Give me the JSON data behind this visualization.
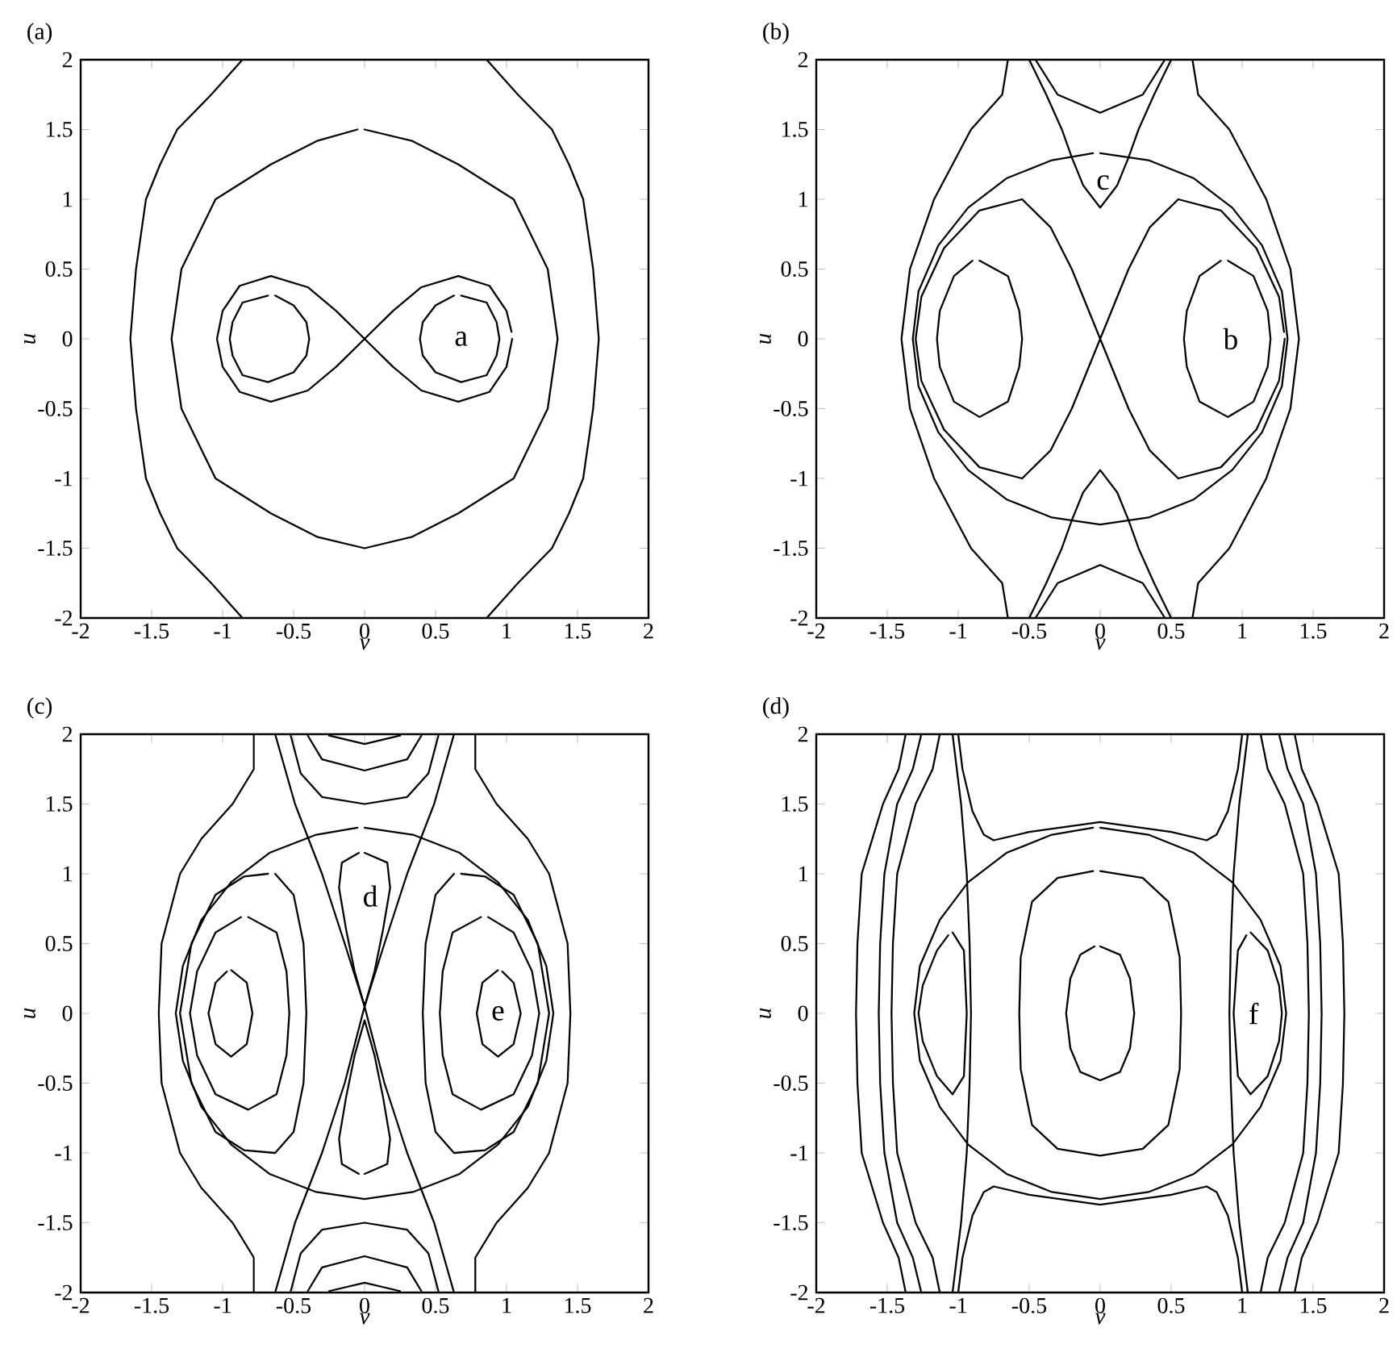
{
  "chart_data": [
    {
      "type": "line",
      "title": "(a)",
      "xlabel": "v",
      "ylabel": "u",
      "xlim": [
        -2,
        2
      ],
      "ylim": [
        -2,
        2
      ],
      "xticks": [
        -2,
        -1.5,
        -1,
        -0.5,
        0,
        0.5,
        1,
        1.5,
        2
      ],
      "yticks": [
        -2,
        -1.5,
        -1,
        -0.5,
        0,
        0.5,
        1,
        1.5,
        2
      ],
      "color": "#000000",
      "annotations": [
        "a"
      ],
      "series": [
        {
          "x": [
            -0.86,
            -1.08,
            -1.32,
            -1.44,
            -1.54,
            -1.61,
            -1.65,
            -1.61,
            -1.54,
            -1.44,
            -1.32,
            -1.08,
            -0.86
          ],
          "values": [
            2,
            1.75,
            1.5,
            1.25,
            1,
            0.5,
            0,
            -0.5,
            -1,
            -1.25,
            -1.5,
            -1.75,
            -2
          ]
        },
        {
          "x": [
            0.86,
            1.08,
            1.32,
            1.44,
            1.54,
            1.61,
            1.65,
            1.61,
            1.54,
            1.44,
            1.32,
            1.08,
            0.86
          ],
          "values": [
            2,
            1.75,
            1.5,
            1.25,
            1,
            0.5,
            0,
            -0.5,
            -1,
            -1.25,
            -1.5,
            -1.75,
            -2
          ]
        },
        {
          "x": [
            0,
            0.33,
            0.66,
            1.05,
            1.29,
            1.36,
            1.29,
            1.05,
            0.66,
            0.33,
            0,
            -0.33,
            -0.66,
            -1.05,
            -1.29,
            -1.36,
            -1.29,
            -1.05,
            -0.66,
            -0.33,
            -0.05
          ],
          "values": [
            1.5,
            1.42,
            1.25,
            1.0,
            0.5,
            0,
            -0.5,
            -1.0,
            -1.25,
            -1.42,
            -1.5,
            -1.42,
            -1.25,
            -1.0,
            -0.5,
            0,
            0.5,
            1.0,
            1.25,
            1.42,
            1.5
          ]
        },
        {
          "x": [
            1.04,
            1.0,
            0.88,
            0.66,
            0.4,
            0.2,
            0,
            -0.2,
            -0.4,
            -0.66,
            -0.88,
            -1.0,
            -1.04,
            -1.0,
            -0.88,
            -0.66,
            -0.4,
            -0.2,
            0,
            0.2,
            0.4,
            0.66,
            0.88,
            1.0,
            1.035
          ],
          "values": [
            0,
            -0.2,
            -0.38,
            -0.45,
            -0.37,
            -0.2,
            0,
            0.2,
            0.37,
            0.45,
            0.38,
            0.2,
            0,
            -0.2,
            -0.38,
            -0.45,
            -0.37,
            -0.2,
            0,
            0.2,
            0.37,
            0.45,
            0.38,
            0.2,
            0.05
          ]
        },
        {
          "x": [
            0.68,
            0.86,
            0.93,
            0.95,
            0.93,
            0.86,
            0.68,
            0.5,
            0.41,
            0.39,
            0.41,
            0.5,
            0.63
          ],
          "values": [
            0.31,
            0.26,
            0.12,
            0,
            -0.12,
            -0.26,
            -0.31,
            -0.24,
            -0.12,
            0,
            0.12,
            0.24,
            0.31
          ]
        },
        {
          "x": [
            -0.68,
            -0.86,
            -0.93,
            -0.95,
            -0.93,
            -0.86,
            -0.68,
            -0.5,
            -0.41,
            -0.39,
            -0.41,
            -0.5,
            -0.63
          ],
          "values": [
            0.31,
            0.26,
            0.12,
            0,
            -0.12,
            -0.26,
            -0.31,
            -0.24,
            -0.12,
            0,
            0.12,
            0.24,
            0.31
          ]
        }
      ]
    },
    {
      "type": "line",
      "title": "(b)",
      "xlabel": "v",
      "ylabel": "u",
      "xlim": [
        -2,
        2
      ],
      "ylim": [
        -2,
        2
      ],
      "xticks": [
        -2,
        -1.5,
        -1,
        -0.5,
        0,
        0.5,
        1,
        1.5,
        2
      ],
      "yticks": [
        -2,
        -1.5,
        -1,
        -0.5,
        0,
        0.5,
        1,
        1.5,
        2
      ],
      "color": "#000000",
      "annotations": [
        "c",
        "b"
      ],
      "series": [
        {
          "x": [
            -0.65,
            -0.69,
            -0.91,
            -1.17,
            -1.34,
            -1.4,
            -1.34,
            -1.17,
            -0.91,
            -0.69,
            -0.65
          ],
          "values": [
            2,
            1.75,
            1.5,
            1,
            0.5,
            0,
            -0.5,
            -1,
            -1.5,
            -1.75,
            -2
          ]
        },
        {
          "x": [
            0.65,
            0.69,
            0.91,
            1.17,
            1.34,
            1.4,
            1.34,
            1.17,
            0.91,
            0.69,
            0.65
          ],
          "values": [
            2,
            1.75,
            1.5,
            1,
            0.5,
            0,
            -0.5,
            -1,
            -1.5,
            -1.75,
            -2
          ]
        },
        {
          "x": [
            0,
            0.34,
            0.66,
            0.93,
            1.14,
            1.28,
            1.32,
            1.28,
            1.14,
            0.93,
            0.66,
            0.34,
            0,
            -0.34,
            -0.66,
            -0.93,
            -1.14,
            -1.28,
            -1.32,
            -1.28,
            -1.14,
            -0.93,
            -0.66,
            -0.34,
            -0.05
          ],
          "values": [
            1.33,
            1.28,
            1.15,
            0.94,
            0.67,
            0.34,
            0,
            -0.34,
            -0.67,
            -0.94,
            -1.15,
            -1.28,
            -1.33,
            -1.28,
            -1.15,
            -0.94,
            -0.67,
            -0.34,
            0,
            0.34,
            0.67,
            0.94,
            1.15,
            1.28,
            1.33
          ]
        },
        {
          "x": [
            1.3,
            1.26,
            1.1,
            0.85,
            0.55,
            0.35,
            0.2,
            0.1,
            0,
            -0.1,
            -0.2,
            -0.35,
            -0.55,
            -0.85,
            -1.1,
            -1.26,
            -1.3,
            -1.26,
            -1.1,
            -0.85,
            -0.55,
            -0.35,
            -0.2,
            -0.1,
            0,
            0.1,
            0.2,
            0.35,
            0.55,
            0.85,
            1.1,
            1.26,
            1.295
          ],
          "values": [
            0,
            -0.3,
            -0.65,
            -0.92,
            -1.0,
            -0.8,
            -0.5,
            -0.25,
            0,
            0.25,
            0.5,
            0.8,
            1.0,
            0.92,
            0.65,
            0.3,
            0,
            -0.3,
            -0.65,
            -0.92,
            -1.0,
            -0.8,
            -0.5,
            -0.25,
            0,
            0.25,
            0.5,
            0.8,
            1.0,
            0.92,
            0.65,
            0.3,
            0.05
          ]
        },
        {
          "x": [
            0.9,
            1.08,
            1.18,
            1.2,
            1.18,
            1.08,
            0.9,
            0.7,
            0.61,
            0.59,
            0.61,
            0.7,
            0.85
          ],
          "values": [
            0.56,
            0.45,
            0.2,
            0,
            -0.2,
            -0.45,
            -0.56,
            -0.45,
            -0.2,
            0,
            0.2,
            0.45,
            0.56
          ]
        },
        {
          "x": [
            -0.85,
            -0.65,
            -0.57,
            -0.55,
            -0.57,
            -0.65,
            -0.85,
            -1.03,
            -1.13,
            -1.15,
            -1.13,
            -1.03,
            -0.9
          ],
          "values": [
            0.56,
            0.45,
            0.2,
            0,
            -0.2,
            -0.45,
            -0.56,
            -0.45,
            -0.2,
            0,
            0.2,
            0.45,
            0.56
          ]
        },
        {
          "x": [
            -0.5,
            -0.38,
            -0.27,
            -0.2,
            -0.12,
            0,
            0.12,
            0.2,
            0.27,
            0.38,
            0.5
          ],
          "values": [
            2,
            1.75,
            1.5,
            1.3,
            1.1,
            0.94,
            1.1,
            1.3,
            1.5,
            1.75,
            2
          ]
        },
        {
          "x": [
            -0.5,
            -0.38,
            -0.27,
            -0.2,
            -0.12,
            0,
            0.12,
            0.2,
            0.27,
            0.38,
            0.5
          ],
          "values": [
            -2,
            -1.75,
            -1.5,
            -1.3,
            -1.1,
            -0.94,
            -1.1,
            -1.3,
            -1.5,
            -1.75,
            -2
          ]
        },
        {
          "x": [
            -0.45,
            -0.3,
            0,
            0.3,
            0.45
          ],
          "values": [
            1.99,
            1.75,
            1.62,
            1.75,
            1.99
          ]
        },
        {
          "x": [
            -0.45,
            -0.3,
            0,
            0.3,
            0.45
          ],
          "values": [
            -1.99,
            -1.75,
            -1.62,
            -1.75,
            -1.99
          ]
        }
      ]
    },
    {
      "type": "line",
      "title": "(c)",
      "xlabel": "v",
      "ylabel": "u",
      "xlim": [
        -2,
        2
      ],
      "ylim": [
        -2,
        2
      ],
      "xticks": [
        -2,
        -1.5,
        -1,
        -0.5,
        0,
        0.5,
        1,
        1.5,
        2
      ],
      "yticks": [
        -2,
        -1.5,
        -1,
        -0.5,
        0,
        0.5,
        1,
        1.5,
        2
      ],
      "color": "#000000",
      "annotations": [
        "d",
        "e"
      ],
      "series": [
        {
          "x": [
            -0.78,
            -0.78,
            -0.93,
            -1.15,
            -1.3,
            -1.43,
            -1.45,
            -1.43,
            -1.3,
            -1.15,
            -0.93,
            -0.78,
            -0.78
          ],
          "values": [
            2,
            1.75,
            1.5,
            1.25,
            1,
            0.5,
            0,
            -0.5,
            -1,
            -1.25,
            -1.5,
            -1.75,
            -2
          ]
        },
        {
          "x": [
            0.78,
            0.78,
            0.93,
            1.15,
            1.3,
            1.43,
            1.45,
            1.43,
            1.3,
            1.15,
            0.93,
            0.78,
            0.78
          ],
          "values": [
            2,
            1.75,
            1.5,
            1.25,
            1,
            0.5,
            0,
            -0.5,
            -1,
            -1.25,
            -1.5,
            -1.75,
            -2
          ]
        },
        {
          "x": [
            0,
            0.34,
            0.67,
            0.94,
            1.15,
            1.28,
            1.33,
            1.28,
            1.15,
            0.94,
            0.67,
            0.34,
            0,
            -0.34,
            -0.67,
            -0.94,
            -1.15,
            -1.28,
            -1.33,
            -1.28,
            -1.15,
            -0.94,
            -0.67,
            -0.34,
            -0.05
          ],
          "values": [
            1.33,
            1.28,
            1.15,
            0.94,
            0.67,
            0.34,
            0,
            -0.34,
            -0.67,
            -0.94,
            -1.15,
            -1.28,
            -1.33,
            -1.28,
            -1.15,
            -0.94,
            -0.67,
            -0.34,
            0,
            0.34,
            0.67,
            0.94,
            1.15,
            1.28,
            1.33
          ]
        },
        {
          "x": [
            -0.63,
            -0.49,
            -0.3,
            -0.14,
            0,
            0.14,
            0.3,
            0.49,
            0.63
          ],
          "values": [
            2,
            1.5,
            1.0,
            0.5,
            0.05,
            -0.5,
            -1.0,
            -1.5,
            -2
          ]
        },
        {
          "x": [
            0.63,
            0.49,
            0.3,
            0.14,
            0,
            -0.14,
            -0.3,
            -0.49,
            -0.63
          ],
          "values": [
            2,
            1.5,
            1.0,
            0.5,
            0.05,
            -0.5,
            -1.0,
            -1.5,
            -2
          ]
        },
        {
          "x": [
            0,
            0.16,
            0.18,
            0.13,
            0.07,
            0,
            -0.07,
            -0.13,
            -0.18,
            -0.16,
            -0.04
          ],
          "values": [
            1.15,
            1.08,
            0.9,
            0.6,
            0.3,
            0.05,
            0.3,
            0.6,
            0.9,
            1.08,
            1.15
          ]
        },
        {
          "x": [
            0,
            0.16,
            0.18,
            0.13,
            0.07,
            0,
            -0.07,
            -0.13,
            -0.18,
            -0.16,
            -0.04
          ],
          "values": [
            -1.15,
            -1.08,
            -0.9,
            -0.6,
            -0.3,
            -0.05,
            -0.3,
            -0.6,
            -0.9,
            -1.08,
            -1.15
          ]
        },
        {
          "x": [
            -0.63,
            -0.5,
            -0.43,
            -0.41,
            -0.43,
            -0.5,
            -0.63,
            -0.85,
            -1.05,
            -1.22,
            -1.3,
            -1.22,
            -1.05,
            -0.85,
            -0.68
          ],
          "values": [
            1.0,
            0.85,
            0.5,
            0,
            -0.5,
            -0.85,
            -1.0,
            -0.98,
            -0.85,
            -0.5,
            0,
            0.5,
            0.85,
            0.98,
            1.0
          ]
        },
        {
          "x": [
            0.63,
            0.5,
            0.43,
            0.41,
            0.43,
            0.5,
            0.63,
            0.85,
            1.05,
            1.22,
            1.3,
            1.22,
            1.05,
            0.85,
            0.68
          ],
          "values": [
            1.0,
            0.85,
            0.5,
            0,
            -0.5,
            -0.85,
            -1.0,
            -0.98,
            -0.85,
            -0.5,
            0,
            0.5,
            0.85,
            0.98,
            1.0
          ]
        },
        {
          "x": [
            -0.82,
            -0.62,
            -0.55,
            -0.53,
            -0.55,
            -0.62,
            -0.82,
            -1.05,
            -1.18,
            -1.23,
            -1.18,
            -1.05,
            -0.87
          ],
          "values": [
            0.69,
            0.58,
            0.3,
            0,
            -0.3,
            -0.58,
            -0.69,
            -0.58,
            -0.3,
            0,
            0.3,
            0.58,
            0.69
          ]
        },
        {
          "x": [
            0.82,
            0.62,
            0.55,
            0.53,
            0.55,
            0.62,
            0.82,
            1.05,
            1.18,
            1.23,
            1.18,
            1.05,
            0.87
          ],
          "values": [
            0.69,
            0.58,
            0.3,
            0,
            -0.3,
            -0.58,
            -0.69,
            -0.58,
            -0.3,
            0,
            0.3,
            0.58,
            0.69
          ]
        },
        {
          "x": [
            -0.94,
            -0.83,
            -0.79,
            -0.83,
            -0.94,
            -1.05,
            -1.1,
            -1.05,
            -0.97
          ],
          "values": [
            0.31,
            0.22,
            0,
            -0.22,
            -0.31,
            -0.22,
            0,
            0.22,
            0.3
          ]
        },
        {
          "x": [
            0.94,
            0.83,
            0.79,
            0.83,
            0.94,
            1.05,
            1.1,
            1.05,
            0.97
          ],
          "values": [
            0.31,
            0.22,
            0,
            -0.22,
            -0.31,
            -0.22,
            0,
            0.22,
            0.3
          ]
        },
        {
          "x": [
            -0.52,
            -0.45,
            -0.3,
            0,
            0.3,
            0.45,
            0.52
          ],
          "values": [
            1.99,
            1.72,
            1.55,
            1.5,
            1.55,
            1.72,
            1.99
          ]
        },
        {
          "x": [
            -0.4,
            -0.3,
            0,
            0.3,
            0.4
          ],
          "values": [
            1.99,
            1.82,
            1.74,
            1.82,
            1.99
          ]
        },
        {
          "x": [
            -0.25,
            0,
            0.25
          ],
          "values": [
            1.99,
            1.93,
            1.99
          ]
        },
        {
          "x": [
            -0.52,
            -0.45,
            -0.3,
            0,
            0.3,
            0.45,
            0.52
          ],
          "values": [
            -1.99,
            -1.72,
            -1.55,
            -1.5,
            -1.55,
            -1.72,
            -1.99
          ]
        },
        {
          "x": [
            -0.4,
            -0.3,
            0,
            0.3,
            0.4
          ],
          "values": [
            -1.99,
            -1.82,
            -1.74,
            -1.82,
            -1.99
          ]
        },
        {
          "x": [
            -0.25,
            0,
            0.25
          ],
          "values": [
            -1.99,
            -1.93,
            -1.99
          ]
        }
      ]
    },
    {
      "type": "line",
      "title": "(d)",
      "xlabel": "v",
      "ylabel": "u",
      "xlim": [
        -2,
        2
      ],
      "ylim": [
        -2,
        2
      ],
      "xticks": [
        -2,
        -1.5,
        -1,
        -0.5,
        0,
        0.5,
        1,
        1.5,
        2
      ],
      "yticks": [
        -2,
        -1.5,
        -1,
        -0.5,
        0,
        0.5,
        1,
        1.5,
        2
      ],
      "color": "#000000",
      "annotations": [
        "f"
      ],
      "series": [
        {
          "x": [
            0,
            0.34,
            0.66,
            0.93,
            1.13,
            1.27,
            1.31,
            1.27,
            1.13,
            0.93,
            0.66,
            0.34,
            0,
            -0.34,
            -0.66,
            -0.93,
            -1.13,
            -1.27,
            -1.31,
            -1.27,
            -1.13,
            -0.93,
            -0.66,
            -0.34,
            -0.05
          ],
          "values": [
            1.33,
            1.28,
            1.15,
            0.94,
            0.67,
            0.34,
            0,
            -0.34,
            -0.67,
            -0.94,
            -1.15,
            -1.28,
            -1.33,
            -1.28,
            -1.15,
            -0.94,
            -0.67,
            -0.34,
            0,
            0.34,
            0.67,
            0.94,
            1.15,
            1.28,
            1.33
          ]
        },
        {
          "x": [
            -1.0,
            -0.97,
            -0.9,
            -0.82,
            -0.75,
            -0.5,
            0,
            0.5,
            0.75,
            0.82,
            0.9,
            0.97,
            1.0
          ],
          "values": [
            2,
            1.75,
            1.45,
            1.28,
            1.24,
            1.3,
            1.37,
            1.3,
            1.24,
            1.28,
            1.45,
            1.75,
            2
          ]
        },
        {
          "x": [
            -1.0,
            -0.97,
            -0.9,
            -0.82,
            -0.75,
            -0.5,
            0,
            0.5,
            0.75,
            0.82,
            0.9,
            0.97,
            1.0
          ],
          "values": [
            -2,
            -1.75,
            -1.45,
            -1.28,
            -1.24,
            -1.3,
            -1.37,
            -1.3,
            -1.24,
            -1.28,
            -1.45,
            -1.75,
            -2
          ]
        },
        {
          "x": [
            -1.04,
            -0.98,
            -0.94,
            -0.92,
            -0.91,
            -0.92,
            -0.94,
            -0.98,
            -1.04
          ],
          "values": [
            2,
            1.5,
            1.0,
            0.5,
            0,
            -0.5,
            -1.0,
            -1.5,
            -2
          ]
        },
        {
          "x": [
            1.04,
            0.98,
            0.94,
            0.92,
            0.91,
            0.92,
            0.94,
            0.98,
            1.04
          ],
          "values": [
            2,
            1.5,
            1.0,
            0.5,
            0,
            -0.5,
            -1.0,
            -1.5,
            -2
          ]
        },
        {
          "x": [
            0,
            0.14,
            0.21,
            0.24,
            0.21,
            0.14,
            0,
            -0.14,
            -0.21,
            -0.24,
            -0.21,
            -0.14,
            -0.04
          ],
          "values": [
            0.48,
            0.42,
            0.25,
            0,
            -0.25,
            -0.42,
            -0.48,
            -0.42,
            -0.25,
            0,
            0.25,
            0.42,
            0.48
          ]
        },
        {
          "x": [
            0,
            0.3,
            0.48,
            0.56,
            0.57,
            0.56,
            0.48,
            0.3,
            0,
            -0.3,
            -0.48,
            -0.56,
            -0.57,
            -0.56,
            -0.48,
            -0.3,
            -0.05
          ],
          "values": [
            1.02,
            0.97,
            0.8,
            0.4,
            0,
            -0.4,
            -0.8,
            -0.97,
            -1.02,
            -0.97,
            -0.8,
            -0.4,
            0,
            0.4,
            0.8,
            0.97,
            1.02
          ]
        },
        {
          "x": [
            -1.04,
            -0.96,
            -0.94,
            -0.96,
            -1.04,
            -1.15,
            -1.25,
            -1.28,
            -1.25,
            -1.15,
            -1.07
          ],
          "values": [
            0.58,
            0.45,
            0,
            -0.45,
            -0.58,
            -0.45,
            -0.2,
            0,
            0.2,
            0.45,
            0.56
          ]
        },
        {
          "x": [
            1.06,
            1.18,
            1.26,
            1.28,
            1.26,
            1.18,
            1.06,
            0.97,
            0.94,
            0.97,
            1.03
          ],
          "values": [
            0.58,
            0.45,
            0.2,
            0,
            -0.2,
            -0.45,
            -0.58,
            -0.45,
            0,
            0.45,
            0.56
          ]
        },
        {
          "x": [
            -1.37,
            -1.42,
            -1.53,
            -1.68,
            -1.71,
            -1.72,
            -1.71,
            -1.68,
            -1.53,
            -1.42,
            -1.37
          ],
          "values": [
            2,
            1.75,
            1.5,
            1,
            0.5,
            0,
            -0.5,
            -1,
            -1.5,
            -1.75,
            -2
          ]
        },
        {
          "x": [
            -1.26,
            -1.32,
            -1.43,
            -1.52,
            -1.55,
            -1.56,
            -1.55,
            -1.52,
            -1.43,
            -1.32,
            -1.26
          ],
          "values": [
            2,
            1.75,
            1.5,
            1,
            0.5,
            0,
            -0.5,
            -1,
            -1.5,
            -1.75,
            -2
          ]
        },
        {
          "x": [
            -1.13,
            -1.18,
            -1.3,
            -1.43,
            -1.46,
            -1.47,
            -1.46,
            -1.43,
            -1.3,
            -1.18,
            -1.13
          ],
          "values": [
            2,
            1.75,
            1.5,
            1,
            0.5,
            0,
            -0.5,
            -1,
            -1.5,
            -1.75,
            -2
          ]
        },
        {
          "x": [
            1.37,
            1.42,
            1.53,
            1.68,
            1.71,
            1.72,
            1.71,
            1.68,
            1.53,
            1.42,
            1.37
          ],
          "values": [
            2,
            1.75,
            1.5,
            1,
            0.5,
            0,
            -0.5,
            -1,
            -1.5,
            -1.75,
            -2
          ]
        },
        {
          "x": [
            1.26,
            1.32,
            1.43,
            1.52,
            1.55,
            1.56,
            1.55,
            1.52,
            1.43,
            1.32,
            1.26
          ],
          "values": [
            2,
            1.75,
            1.5,
            1,
            0.5,
            0,
            -0.5,
            -1,
            -1.5,
            -1.75,
            -2
          ]
        },
        {
          "x": [
            1.13,
            1.18,
            1.3,
            1.43,
            1.46,
            1.47,
            1.46,
            1.43,
            1.3,
            1.18,
            1.13
          ],
          "values": [
            2,
            1.75,
            1.5,
            1,
            0.5,
            0,
            -0.5,
            -1,
            -1.5,
            -1.75,
            -2
          ]
        }
      ]
    }
  ]
}
